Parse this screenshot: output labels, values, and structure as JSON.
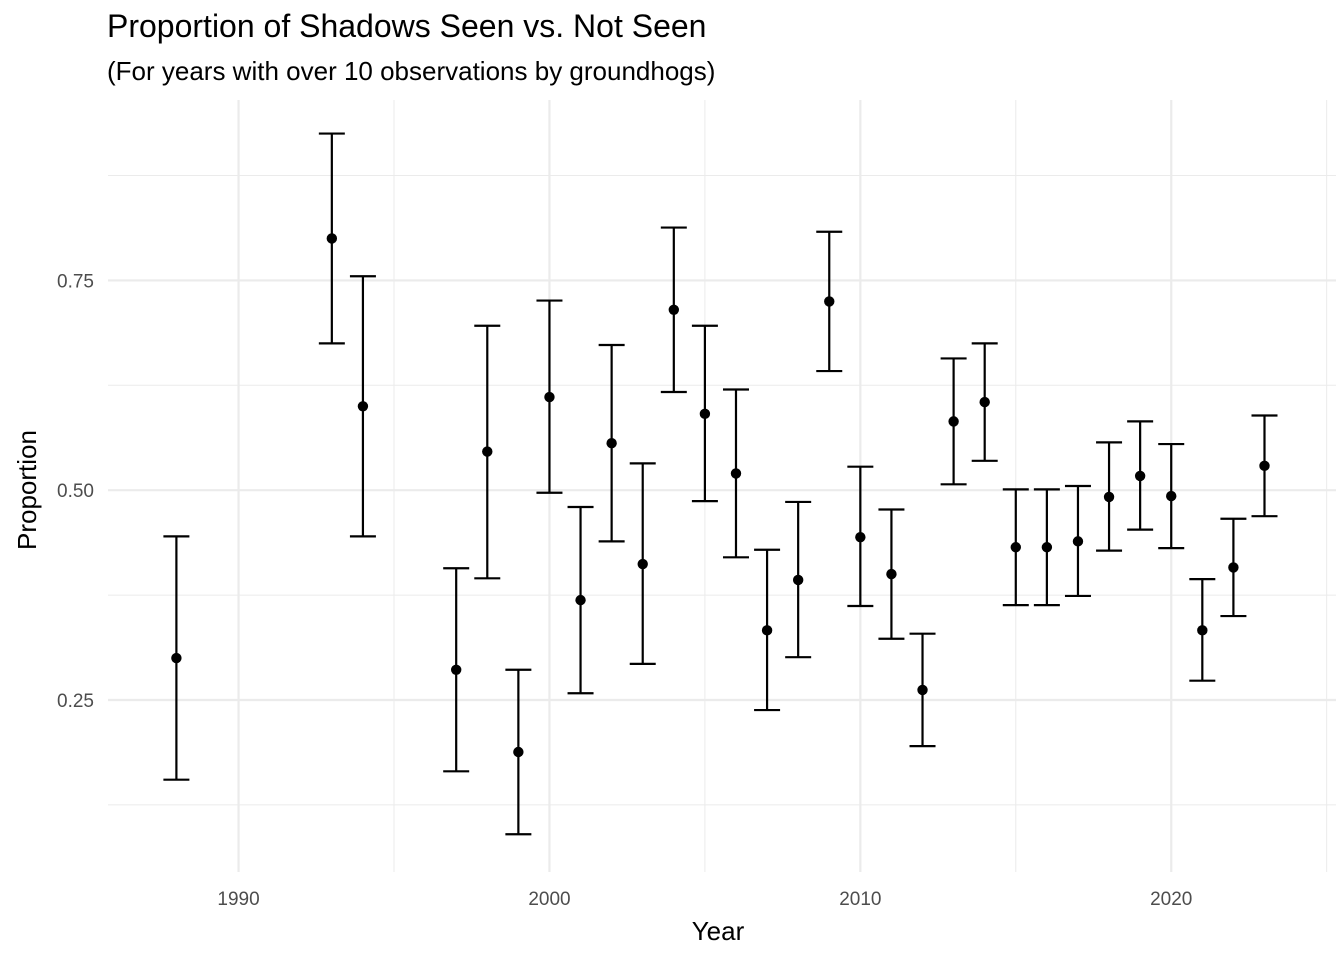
{
  "chart_data": {
    "type": "scatter",
    "title": "Proportion of Shadows Seen vs. Not Seen",
    "subtitle": "(For years with over 10 observations by groundhogs)",
    "xlabel": "Year",
    "ylabel": "Proportion",
    "xlim": [
      1985.8,
      2025.3
    ],
    "ylim": [
      0.045,
      0.965
    ],
    "x_ticks": [
      1990,
      2000,
      2010,
      2020
    ],
    "x_tick_labels": [
      "1990",
      "2000",
      "2010",
      "2020"
    ],
    "y_ticks": [
      0.25,
      0.5,
      0.75
    ],
    "y_tick_labels": [
      "0.25",
      "0.50",
      "0.75"
    ],
    "grid": true,
    "legend": "none",
    "colors": {
      "points": "#000000",
      "grid": "#ebebeb"
    },
    "points": [
      {
        "x": 1988,
        "y": 0.3,
        "low": 0.155,
        "high": 0.445
      },
      {
        "x": 1993,
        "y": 0.8,
        "low": 0.675,
        "high": 0.925
      },
      {
        "x": 1994,
        "y": 0.6,
        "low": 0.445,
        "high": 0.755
      },
      {
        "x": 1997,
        "y": 0.286,
        "low": 0.165,
        "high": 0.407
      },
      {
        "x": 1998,
        "y": 0.546,
        "low": 0.395,
        "high": 0.696
      },
      {
        "x": 1999,
        "y": 0.188,
        "low": 0.09,
        "high": 0.286
      },
      {
        "x": 2000,
        "y": 0.611,
        "low": 0.497,
        "high": 0.726
      },
      {
        "x": 2001,
        "y": 0.369,
        "low": 0.258,
        "high": 0.48
      },
      {
        "x": 2002,
        "y": 0.556,
        "low": 0.439,
        "high": 0.673
      },
      {
        "x": 2003,
        "y": 0.412,
        "low": 0.293,
        "high": 0.532
      },
      {
        "x": 2004,
        "y": 0.715,
        "low": 0.617,
        "high": 0.813
      },
      {
        "x": 2005,
        "y": 0.591,
        "low": 0.487,
        "high": 0.696
      },
      {
        "x": 2006,
        "y": 0.52,
        "low": 0.42,
        "high": 0.62
      },
      {
        "x": 2007,
        "y": 0.333,
        "low": 0.238,
        "high": 0.429
      },
      {
        "x": 2008,
        "y": 0.393,
        "low": 0.301,
        "high": 0.486
      },
      {
        "x": 2009,
        "y": 0.725,
        "low": 0.642,
        "high": 0.808
      },
      {
        "x": 2010,
        "y": 0.444,
        "low": 0.362,
        "high": 0.528
      },
      {
        "x": 2011,
        "y": 0.4,
        "low": 0.323,
        "high": 0.477
      },
      {
        "x": 2012,
        "y": 0.262,
        "low": 0.195,
        "high": 0.329
      },
      {
        "x": 2013,
        "y": 0.582,
        "low": 0.507,
        "high": 0.657
      },
      {
        "x": 2014,
        "y": 0.605,
        "low": 0.535,
        "high": 0.675
      },
      {
        "x": 2015,
        "y": 0.432,
        "low": 0.363,
        "high": 0.501
      },
      {
        "x": 2016,
        "y": 0.432,
        "low": 0.363,
        "high": 0.501
      },
      {
        "x": 2017,
        "y": 0.439,
        "low": 0.374,
        "high": 0.505
      },
      {
        "x": 2018,
        "y": 0.492,
        "low": 0.428,
        "high": 0.557
      },
      {
        "x": 2019,
        "y": 0.517,
        "low": 0.453,
        "high": 0.582
      },
      {
        "x": 2020,
        "y": 0.493,
        "low": 0.431,
        "high": 0.555
      },
      {
        "x": 2021,
        "y": 0.333,
        "low": 0.273,
        "high": 0.394
      },
      {
        "x": 2022,
        "y": 0.408,
        "low": 0.35,
        "high": 0.466
      },
      {
        "x": 2023,
        "y": 0.529,
        "low": 0.469,
        "high": 0.589
      }
    ]
  }
}
